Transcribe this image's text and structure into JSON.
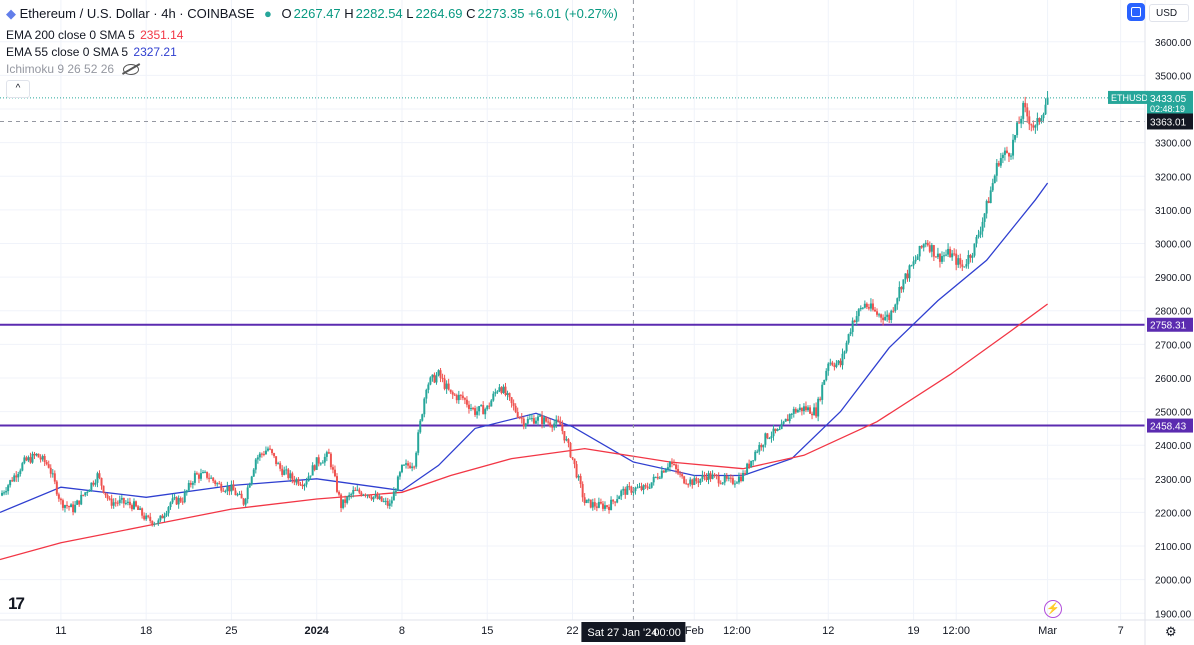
{
  "header": {
    "symbol": "Ethereum / U.S. Dollar · 4h · COINBASE",
    "o_label": "O",
    "o": "2267.47",
    "h_label": "H",
    "h": "2282.54",
    "l_label": "L",
    "l": "2264.69",
    "c_label": "C",
    "c": "2273.35",
    "change": "+6.01 (+0.27%)"
  },
  "indicators": {
    "ema200_label": "EMA 200 close 0 SMA 5",
    "ema200_value": "2351.14",
    "ema55_label": "EMA 55 close 0 SMA 5",
    "ema55_value": "2327.21",
    "ichimoku_label": "Ichimoku 9 26 52 26"
  },
  "toolbar": {
    "currency": "USD",
    "collapse_label": "^"
  },
  "logo_text": "17",
  "colors": {
    "up": "#26a69a",
    "down": "#ef5350",
    "ema55": "#2f3fd0",
    "ema200": "#f23645",
    "hline": "#5b2bb0",
    "grid": "#f0f3fa",
    "axis_text": "#131722"
  },
  "chart_data": {
    "type": "candlestick",
    "timeframe": "4h",
    "ylim": [
      1880,
      3650
    ],
    "yticks": [
      1900,
      2000,
      2100,
      2200,
      2300,
      2400,
      2500,
      2600,
      2700,
      2800,
      2900,
      3000,
      3100,
      3200,
      3300,
      3400,
      3500,
      3600
    ],
    "ytick_labels": [
      "1900.00",
      "2000.00",
      "2100.00",
      "2200.00",
      "2300.00",
      "2400.00",
      "2500.00",
      "2600.00",
      "2700.00",
      "2800.00",
      "2900.00",
      "3000.00",
      "3100.00",
      "3200.00",
      "3300.00",
      "3400.00",
      "3500.00",
      "3600.00"
    ],
    "xticks": [
      {
        "label": "11",
        "date": "2023-12-11"
      },
      {
        "label": "18",
        "date": "2023-12-18"
      },
      {
        "label": "25",
        "date": "2023-12-25"
      },
      {
        "label": "2024",
        "date": "2024-01-01",
        "bold": true
      },
      {
        "label": "8",
        "date": "2024-01-08"
      },
      {
        "label": "15",
        "date": "2024-01-15"
      },
      {
        "label": "22",
        "date": "2024-01-22"
      },
      {
        "label": "Feb",
        "date": "2024-02-01"
      },
      {
        "label": "12:00",
        "date": "2024-02-04T12:00"
      },
      {
        "label": "12",
        "date": "2024-02-12"
      },
      {
        "label": "19",
        "date": "2024-02-19"
      },
      {
        "label": "12:00",
        "date": "2024-02-22T12:00"
      },
      {
        "label": "Mar",
        "date": "2024-03-01"
      },
      {
        "label": "7",
        "date": "2024-03-07"
      }
    ],
    "x_range": [
      "2023-12-06",
      "2024-03-09"
    ],
    "crosshair": {
      "date": "2024-01-27",
      "label": "Sat 27 Jan '24",
      "time": "00:00",
      "price": 3363.01,
      "price_label": "3363.01"
    },
    "horizontal_lines": [
      {
        "value": 2758.31,
        "label": "2758.31"
      },
      {
        "value": 2458.43,
        "label": "2458.43"
      }
    ],
    "last_price": {
      "value": 3433.05,
      "label": "ETHUSD",
      "price_label": "3433.05",
      "countdown": "02:48:19"
    },
    "close_path": [
      [
        "2023-12-06",
        2250
      ],
      [
        "2023-12-08",
        2350
      ],
      [
        "2023-12-09",
        2370
      ],
      [
        "2023-12-10",
        2340
      ],
      [
        "2023-12-11",
        2230
      ],
      [
        "2023-12-12",
        2210
      ],
      [
        "2023-12-13",
        2260
      ],
      [
        "2023-12-14",
        2310
      ],
      [
        "2023-12-15",
        2230
      ],
      [
        "2023-12-16",
        2230
      ],
      [
        "2023-12-17",
        2220
      ],
      [
        "2023-12-18",
        2180
      ],
      [
        "2023-12-19",
        2170
      ],
      [
        "2023-12-20",
        2230
      ],
      [
        "2023-12-21",
        2240
      ],
      [
        "2023-12-22",
        2310
      ],
      [
        "2023-12-23",
        2310
      ],
      [
        "2023-12-24",
        2280
      ],
      [
        "2023-12-25",
        2270
      ],
      [
        "2023-12-26",
        2230
      ],
      [
        "2023-12-27",
        2360
      ],
      [
        "2023-12-28",
        2390
      ],
      [
        "2023-12-29",
        2330
      ],
      [
        "2023-12-30",
        2300
      ],
      [
        "2023-12-31",
        2290
      ],
      [
        "2024-01-01",
        2350
      ],
      [
        "2024-01-02",
        2370
      ],
      [
        "2024-01-03",
        2220
      ],
      [
        "2024-01-04",
        2260
      ],
      [
        "2024-01-05",
        2260
      ],
      [
        "2024-01-06",
        2240
      ],
      [
        "2024-01-07",
        2220
      ],
      [
        "2024-01-08",
        2330
      ],
      [
        "2024-01-09",
        2350
      ],
      [
        "2024-01-10",
        2580
      ],
      [
        "2024-01-11",
        2610
      ],
      [
        "2024-01-12",
        2550
      ],
      [
        "2024-01-13",
        2540
      ],
      [
        "2024-01-14",
        2500
      ],
      [
        "2024-01-15",
        2510
      ],
      [
        "2024-01-16",
        2580
      ],
      [
        "2024-01-17",
        2520
      ],
      [
        "2024-01-18",
        2470
      ],
      [
        "2024-01-19",
        2480
      ],
      [
        "2024-01-20",
        2470
      ],
      [
        "2024-01-21",
        2460
      ],
      [
        "2024-01-22",
        2360
      ],
      [
        "2024-01-23",
        2230
      ],
      [
        "2024-01-24",
        2220
      ],
      [
        "2024-01-25",
        2220
      ],
      [
        "2024-01-26",
        2260
      ],
      [
        "2024-01-27",
        2270
      ],
      [
        "2024-01-28",
        2270
      ],
      [
        "2024-01-29",
        2310
      ],
      [
        "2024-01-30",
        2350
      ],
      [
        "2024-01-31",
        2300
      ],
      [
        "2024-02-01",
        2290
      ],
      [
        "2024-02-02",
        2310
      ],
      [
        "2024-02-03",
        2300
      ],
      [
        "2024-02-04",
        2290
      ],
      [
        "2024-02-05",
        2310
      ],
      [
        "2024-02-06",
        2380
      ],
      [
        "2024-02-07",
        2430
      ],
      [
        "2024-02-08",
        2440
      ],
      [
        "2024-02-09",
        2500
      ],
      [
        "2024-02-10",
        2510
      ],
      [
        "2024-02-11",
        2500
      ],
      [
        "2024-02-12",
        2650
      ],
      [
        "2024-02-13",
        2640
      ],
      [
        "2024-02-14",
        2770
      ],
      [
        "2024-02-15",
        2820
      ],
      [
        "2024-02-16",
        2790
      ],
      [
        "2024-02-17",
        2780
      ],
      [
        "2024-02-18",
        2880
      ],
      [
        "2024-02-19",
        2940
      ],
      [
        "2024-02-20",
        3010
      ],
      [
        "2024-02-21",
        2960
      ],
      [
        "2024-02-22",
        2970
      ],
      [
        "2024-02-23",
        2930
      ],
      [
        "2024-02-24",
        2990
      ],
      [
        "2024-02-25",
        3110
      ],
      [
        "2024-02-26",
        3250
      ],
      [
        "2024-02-27",
        3280
      ],
      [
        "2024-02-28",
        3400
      ],
      [
        "2024-02-29",
        3340
      ],
      [
        "2024-03-01",
        3433.05
      ]
    ],
    "series": [
      {
        "name": "EMA 55",
        "values": [
          [
            "2023-12-06",
            2200
          ],
          [
            "2023-12-11",
            2275
          ],
          [
            "2023-12-18",
            2245
          ],
          [
            "2023-12-25",
            2280
          ],
          [
            "2024-01-01",
            2300
          ],
          [
            "2024-01-08",
            2265
          ],
          [
            "2024-01-11",
            2340
          ],
          [
            "2024-01-14",
            2450
          ],
          [
            "2024-01-19",
            2495
          ],
          [
            "2024-01-22",
            2455
          ],
          [
            "2024-01-27",
            2350
          ],
          [
            "2024-02-01",
            2310
          ],
          [
            "2024-02-05",
            2310
          ],
          [
            "2024-02-09",
            2360
          ],
          [
            "2024-02-13",
            2500
          ],
          [
            "2024-02-17",
            2690
          ],
          [
            "2024-02-21",
            2830
          ],
          [
            "2024-02-25",
            2950
          ],
          [
            "2024-02-29",
            3130
          ],
          [
            "2024-03-01",
            3180
          ]
        ]
      },
      {
        "name": "EMA 200",
        "values": [
          [
            "2023-12-06",
            2060
          ],
          [
            "2023-12-11",
            2110
          ],
          [
            "2023-12-18",
            2160
          ],
          [
            "2023-12-25",
            2210
          ],
          [
            "2024-01-01",
            2240
          ],
          [
            "2024-01-08",
            2260
          ],
          [
            "2024-01-12",
            2310
          ],
          [
            "2024-01-17",
            2360
          ],
          [
            "2024-01-23",
            2390
          ],
          [
            "2024-01-30",
            2350
          ],
          [
            "2024-02-05",
            2330
          ],
          [
            "2024-02-10",
            2370
          ],
          [
            "2024-02-16",
            2470
          ],
          [
            "2024-02-22",
            2610
          ],
          [
            "2024-02-27",
            2740
          ],
          [
            "2024-03-01",
            2820
          ]
        ]
      }
    ]
  }
}
